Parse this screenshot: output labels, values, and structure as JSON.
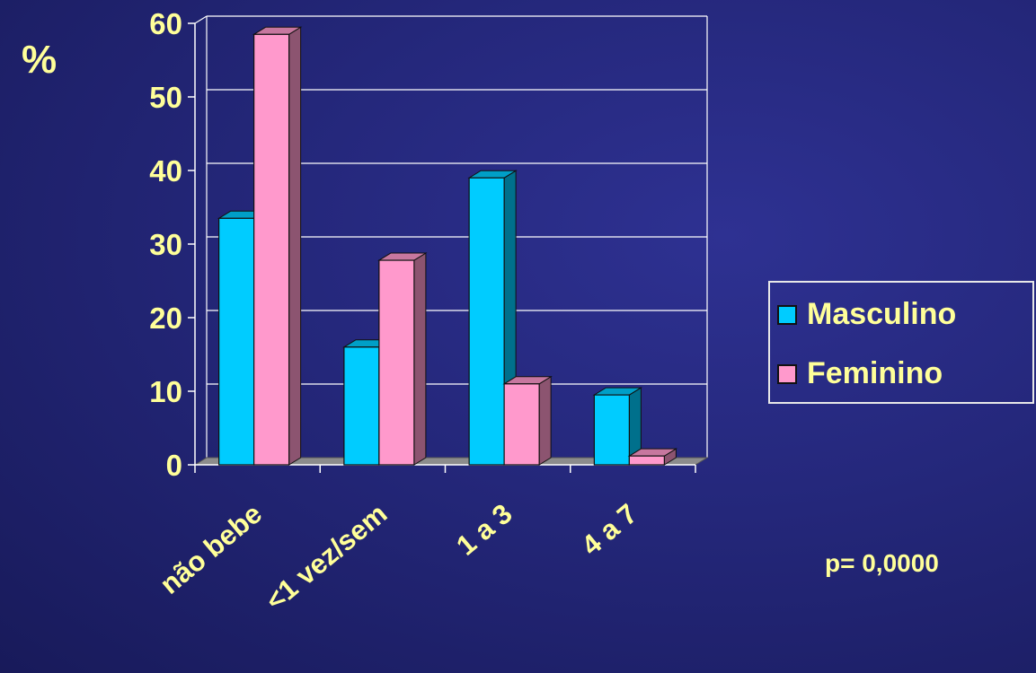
{
  "chart_data": {
    "type": "bar",
    "style": "3d-clustered-column",
    "ylabel": "%",
    "xlabel": "",
    "ylim": [
      0,
      60
    ],
    "yticks": [
      "0",
      "10",
      "20",
      "30",
      "40",
      "50",
      "60"
    ],
    "grid": true,
    "categories": [
      "não bebe",
      "<1 vez/sem",
      "1 a 3",
      "4 a 7"
    ],
    "series": [
      {
        "name": "Masculino",
        "color": "#00ccff",
        "values": [
          33.5,
          16,
          39,
          9.5
        ]
      },
      {
        "name": "Feminino",
        "color": "#ff99cc",
        "values": [
          58.5,
          27.8,
          11,
          1.2
        ]
      }
    ],
    "legend": "right",
    "annotation": "p= 0,0000"
  },
  "colors": {
    "background": "#24277a",
    "text": "#ffff99",
    "grid": "#ffffff",
    "floor": "#8c8c8c"
  }
}
